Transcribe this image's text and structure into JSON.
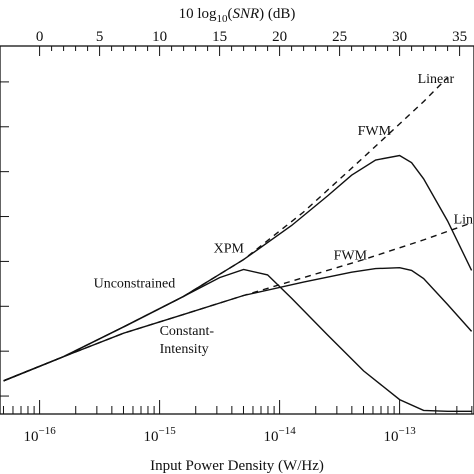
{
  "chart_data": {
    "type": "line",
    "top_axis": {
      "label_prefix": "10 log",
      "label_sub": "10",
      "label_var": "SNR",
      "label_suffix": " (dB)",
      "ticks": [
        0,
        5,
        10,
        15,
        20,
        25,
        30,
        35
      ],
      "tick_labels": [
        "0",
        "5",
        "10",
        "15",
        "20",
        "25",
        "30",
        "35"
      ]
    },
    "bottom_axis": {
      "label": "Input Power Density (W/Hz)",
      "scale": "log",
      "major_labels": [
        {
          "base": "10",
          "exp": "−16",
          "log10": -16
        },
        {
          "base": "10",
          "exp": "−15",
          "log10": -15
        },
        {
          "base": "10",
          "exp": "−14",
          "log10": -14
        },
        {
          "base": "10",
          "exp": "−13",
          "log10": -13
        }
      ]
    },
    "series": [
      {
        "name": "Linear",
        "style": "dashed",
        "x": [
          -16.3,
          -15.8,
          -15.3,
          -14.8,
          -14.3,
          -13.8,
          -13.3,
          -12.8,
          -12.6
        ],
        "y": [
          -3.3,
          -0.6,
          2.7,
          6.1,
          10.2,
          15.5,
          21.6,
          27.8,
          30.5
        ]
      },
      {
        "name": "FWM",
        "style": "solid",
        "x": [
          -16.3,
          -15.8,
          -15.3,
          -14.8,
          -14.3,
          -13.9,
          -13.6,
          -13.4,
          -13.2,
          -13.0,
          -12.9,
          -12.8,
          -12.6,
          -12.4
        ],
        "y": [
          -3.3,
          -0.6,
          2.7,
          6.1,
          10.2,
          14.0,
          17.3,
          19.6,
          21.3,
          21.8,
          21.0,
          19.2,
          14.5,
          9.0
        ]
      },
      {
        "name": "Linear",
        "style": "dashed",
        "x": [
          -16.3,
          -15.8,
          -15.3,
          -14.8,
          -14.3,
          -13.8,
          -13.3,
          -12.8,
          -12.4
        ],
        "y": [
          -3.3,
          -0.6,
          2.0,
          4.1,
          6.2,
          8.2,
          10.2,
          12.4,
          14.3
        ]
      },
      {
        "name": "FWM",
        "style": "solid",
        "x": [
          -16.3,
          -15.8,
          -15.3,
          -14.8,
          -14.3,
          -13.8,
          -13.4,
          -13.2,
          -13.0,
          -12.9,
          -12.8,
          -12.6,
          -12.4
        ],
        "y": [
          -3.3,
          -0.6,
          2.0,
          4.1,
          6.2,
          7.7,
          8.8,
          9.2,
          9.3,
          9.0,
          8.1,
          5.2,
          2.2
        ]
      },
      {
        "name": "XPM",
        "style": "solid",
        "x": [
          -16.3,
          -15.8,
          -15.3,
          -14.8,
          -14.5,
          -14.3,
          -14.1,
          -13.9,
          -13.6,
          -13.3,
          -13.0,
          -12.8,
          -12.6,
          -12.4
        ],
        "y": [
          -3.3,
          -0.6,
          2.7,
          6.1,
          8.2,
          9.1,
          8.5,
          5.9,
          1.8,
          -2.2,
          -5.4,
          -6.6,
          -6.7,
          -6.7
        ]
      }
    ],
    "annotations": [
      {
        "text": "Linear",
        "x": -12.85,
        "y": 29.9
      },
      {
        "text": "FWM",
        "x": -13.35,
        "y": 24.1
      },
      {
        "text": "Line",
        "x": -12.55,
        "y": 14.2
      },
      {
        "text": "Unconstrained",
        "x": -15.55,
        "y": 7.1
      },
      {
        "text": "XPM",
        "x": -14.55,
        "y": 11.0
      },
      {
        "text": "FWM",
        "x": -13.55,
        "y": 10.2
      },
      {
        "text": "Constant-",
        "x": -15.0,
        "y": 1.8
      },
      {
        "text": "Intensity",
        "x": -15.0,
        "y": -0.2
      }
    ],
    "xlim": [
      -16.33,
      -12.38
    ],
    "ylim": [
      -7.0,
      34.0
    ]
  }
}
